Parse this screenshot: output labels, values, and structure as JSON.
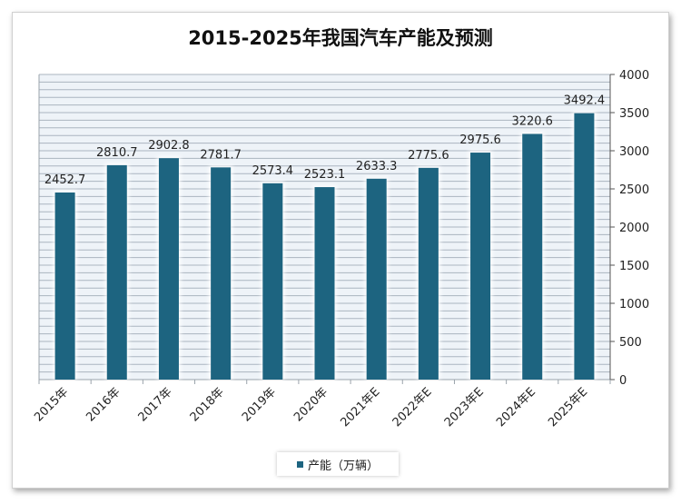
{
  "chart_data": {
    "type": "bar",
    "title": "2015-2025年我国汽车产能及预测",
    "categories": [
      "2015年",
      "2016年",
      "2017年",
      "2018年",
      "2019年",
      "2020年",
      "2021年E",
      "2022年E",
      "2023年E",
      "2024年E",
      "2025年E"
    ],
    "series": [
      {
        "name": "产能（万辆）",
        "values": [
          2452.7,
          2810.7,
          2902.8,
          2781.7,
          2573.4,
          2523.1,
          2633.3,
          2775.6,
          2975.6,
          3220.6,
          3492.4
        ]
      }
    ],
    "value_labels": [
      "2452.7",
      "2810.7",
      "2902.8",
      "2781.7",
      "2573.4",
      "2523.1",
      "2633.3",
      "2775.6",
      "2975.6",
      "3220.6",
      "3492.4"
    ],
    "ylim": [
      0,
      4000
    ],
    "yticks": [
      0,
      500,
      1000,
      1500,
      2000,
      2500,
      3000,
      3500,
      4000
    ],
    "ytick_labels": [
      "0",
      "500",
      "1000",
      "1500",
      "2000",
      "2500",
      "3000",
      "3500",
      "4000"
    ],
    "y_axis_side": "right",
    "grid": true,
    "legend_position": "bottom",
    "colors": {
      "bar": "#1d6480",
      "grid": "#aab4bf",
      "plot_bg": "#eef3f8"
    }
  }
}
